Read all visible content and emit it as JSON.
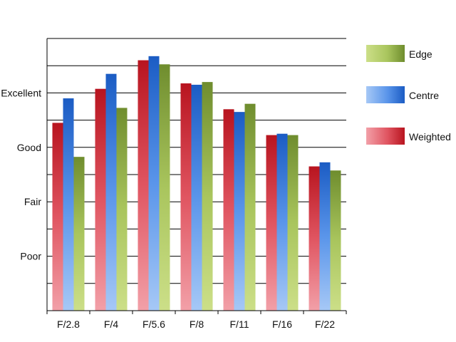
{
  "chart_data": {
    "type": "bar",
    "title": "",
    "xlabel": "",
    "ylabel": "",
    "categories": [
      "F/2.8",
      "F/4",
      "F/5.6",
      "F/8",
      "F/11",
      "F/16",
      "F/22"
    ],
    "y_tick_labels": [
      {
        "label": "Poor",
        "value": 2
      },
      {
        "label": "Fair",
        "value": 4
      },
      {
        "label": "Good",
        "value": 6
      },
      {
        "label": "Excellent",
        "value": 8
      }
    ],
    "ylim": [
      0,
      10
    ],
    "grid": true,
    "legend_position": "right",
    "series": [
      {
        "name": "Weighted",
        "values": [
          6.9,
          8.15,
          9.2,
          8.35,
          7.4,
          6.45,
          5.3
        ],
        "color_light": "#f2a0a8",
        "color": "#e05561",
        "color_dark": "#b8141f"
      },
      {
        "name": "Centre",
        "values": [
          7.8,
          8.7,
          9.35,
          8.3,
          7.3,
          6.5,
          5.45
        ],
        "color_light": "#a6c8f6",
        "color": "#5a95ea",
        "color_dark": "#1b5cc4"
      },
      {
        "name": "Edge",
        "values": [
          5.65,
          7.45,
          9.05,
          8.4,
          7.6,
          6.45,
          5.15
        ],
        "color_light": "#ccdf88",
        "color": "#a9c55d",
        "color_dark": "#6f8d2e"
      }
    ],
    "legend_order": [
      "Edge",
      "Centre",
      "Weighted"
    ]
  }
}
